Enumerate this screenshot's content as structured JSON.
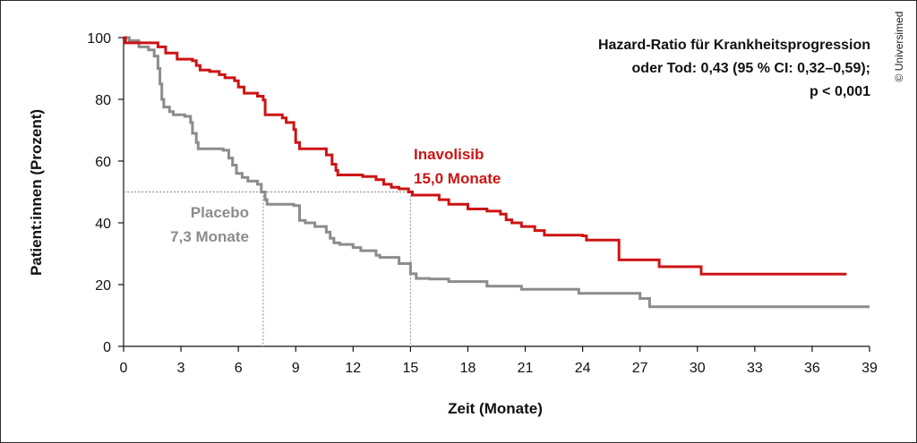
{
  "chart_data": {
    "type": "line",
    "subtype": "kaplan-meier step curve",
    "xlabel": "Zeit (Monate)",
    "ylabel": "Patient:innen (Prozent)",
    "xlim": [
      0,
      39
    ],
    "ylim": [
      0,
      100
    ],
    "xticks": [
      "0",
      "3",
      "6",
      "9",
      "12",
      "15",
      "18",
      "21",
      "24",
      "27",
      "30",
      "33",
      "36",
      "39"
    ],
    "yticks": [
      "0",
      "20",
      "40",
      "60",
      "80",
      "100"
    ],
    "grid": false,
    "annotation": [
      "Hazard-Ratio für Krankheitsprogression",
      "oder Tod: 0,43 (95 % CI: 0,32–0,59);",
      "p < 0,001"
    ],
    "credit": "© Universimed",
    "median_reference_y": 50,
    "series": [
      {
        "name": "Inavolisib",
        "median_label": "15,0 Monate",
        "median_x": 15.0,
        "color": "#cc1414",
        "points": [
          [
            0,
            100
          ],
          [
            0.1,
            98.3
          ],
          [
            1.8,
            98.3
          ],
          [
            1.8,
            97
          ],
          [
            2,
            97
          ],
          [
            2.2,
            95
          ],
          [
            2.8,
            93
          ],
          [
            3.6,
            92.5
          ],
          [
            3.8,
            91
          ],
          [
            4,
            89.5
          ],
          [
            4.5,
            89
          ],
          [
            5,
            88
          ],
          [
            5.3,
            87
          ],
          [
            5.8,
            86
          ],
          [
            6,
            84
          ],
          [
            6.3,
            82
          ],
          [
            7,
            81
          ],
          [
            7.3,
            79.8
          ],
          [
            7.4,
            75
          ],
          [
            8,
            75
          ],
          [
            8.3,
            74
          ],
          [
            8.5,
            72.5
          ],
          [
            8.9,
            70.2
          ],
          [
            9,
            66
          ],
          [
            9.2,
            64
          ],
          [
            10.3,
            64
          ],
          [
            10.6,
            62
          ],
          [
            10.9,
            59
          ],
          [
            11.1,
            57
          ],
          [
            11.2,
            55.5
          ],
          [
            12,
            55.5
          ],
          [
            12.5,
            55
          ],
          [
            13.2,
            54
          ],
          [
            13.6,
            52.5
          ],
          [
            14,
            51.5
          ],
          [
            14.4,
            51
          ],
          [
            14.9,
            50
          ],
          [
            15.1,
            49
          ],
          [
            16.2,
            49
          ],
          [
            16.5,
            47.5
          ],
          [
            17,
            46
          ],
          [
            18,
            44.5
          ],
          [
            19,
            43.8
          ],
          [
            19.7,
            42.8
          ],
          [
            20,
            41
          ],
          [
            20.3,
            40
          ],
          [
            20.8,
            38.8
          ],
          [
            21.5,
            37.5
          ],
          [
            22,
            36
          ],
          [
            24,
            35.8
          ],
          [
            24.2,
            34.4
          ],
          [
            25.9,
            34.4
          ],
          [
            25.9,
            28
          ],
          [
            27.5,
            28
          ],
          [
            28,
            25.8
          ],
          [
            30.2,
            25.8
          ],
          [
            30.2,
            23.4
          ],
          [
            37.8,
            23.4
          ]
        ]
      },
      {
        "name": "Placebo",
        "median_label": "7,3 Monate",
        "median_x": 7.3,
        "color": "#8c8c8c",
        "points": [
          [
            0,
            100
          ],
          [
            0.3,
            99
          ],
          [
            0.8,
            97
          ],
          [
            1.3,
            96
          ],
          [
            1.6,
            94
          ],
          [
            1.8,
            90
          ],
          [
            1.9,
            85
          ],
          [
            2,
            80
          ],
          [
            2.1,
            77.5
          ],
          [
            2.4,
            76
          ],
          [
            2.6,
            75
          ],
          [
            3.2,
            74.5
          ],
          [
            3.5,
            72.5
          ],
          [
            3.6,
            69
          ],
          [
            3.8,
            66
          ],
          [
            3.9,
            64
          ],
          [
            5.2,
            63.5
          ],
          [
            5.5,
            61
          ],
          [
            5.7,
            58.7
          ],
          [
            5.9,
            56
          ],
          [
            6.2,
            54.7
          ],
          [
            6.5,
            53.5
          ],
          [
            7,
            52.5
          ],
          [
            7.2,
            50
          ],
          [
            7.4,
            47.5
          ],
          [
            7.5,
            46
          ],
          [
            8.9,
            45.6
          ],
          [
            9.2,
            40.8
          ],
          [
            9.5,
            40
          ],
          [
            10,
            38.8
          ],
          [
            10.6,
            37
          ],
          [
            10.8,
            35
          ],
          [
            11,
            33.5
          ],
          [
            11.3,
            33
          ],
          [
            12,
            32
          ],
          [
            12.4,
            31
          ],
          [
            13.2,
            29.5
          ],
          [
            13.4,
            28.8
          ],
          [
            14.4,
            26.8
          ],
          [
            15,
            23.5
          ],
          [
            15.3,
            22
          ],
          [
            16,
            21.8
          ],
          [
            17,
            21
          ],
          [
            18.5,
            21
          ],
          [
            19,
            19.5
          ],
          [
            20.6,
            19.5
          ],
          [
            20.8,
            18.5
          ],
          [
            23.8,
            18.5
          ],
          [
            23.8,
            17.2
          ],
          [
            26.7,
            17.2
          ],
          [
            27,
            15.5
          ],
          [
            27.5,
            15.5
          ],
          [
            27.5,
            12.8
          ],
          [
            39,
            12.8
          ]
        ]
      }
    ]
  }
}
